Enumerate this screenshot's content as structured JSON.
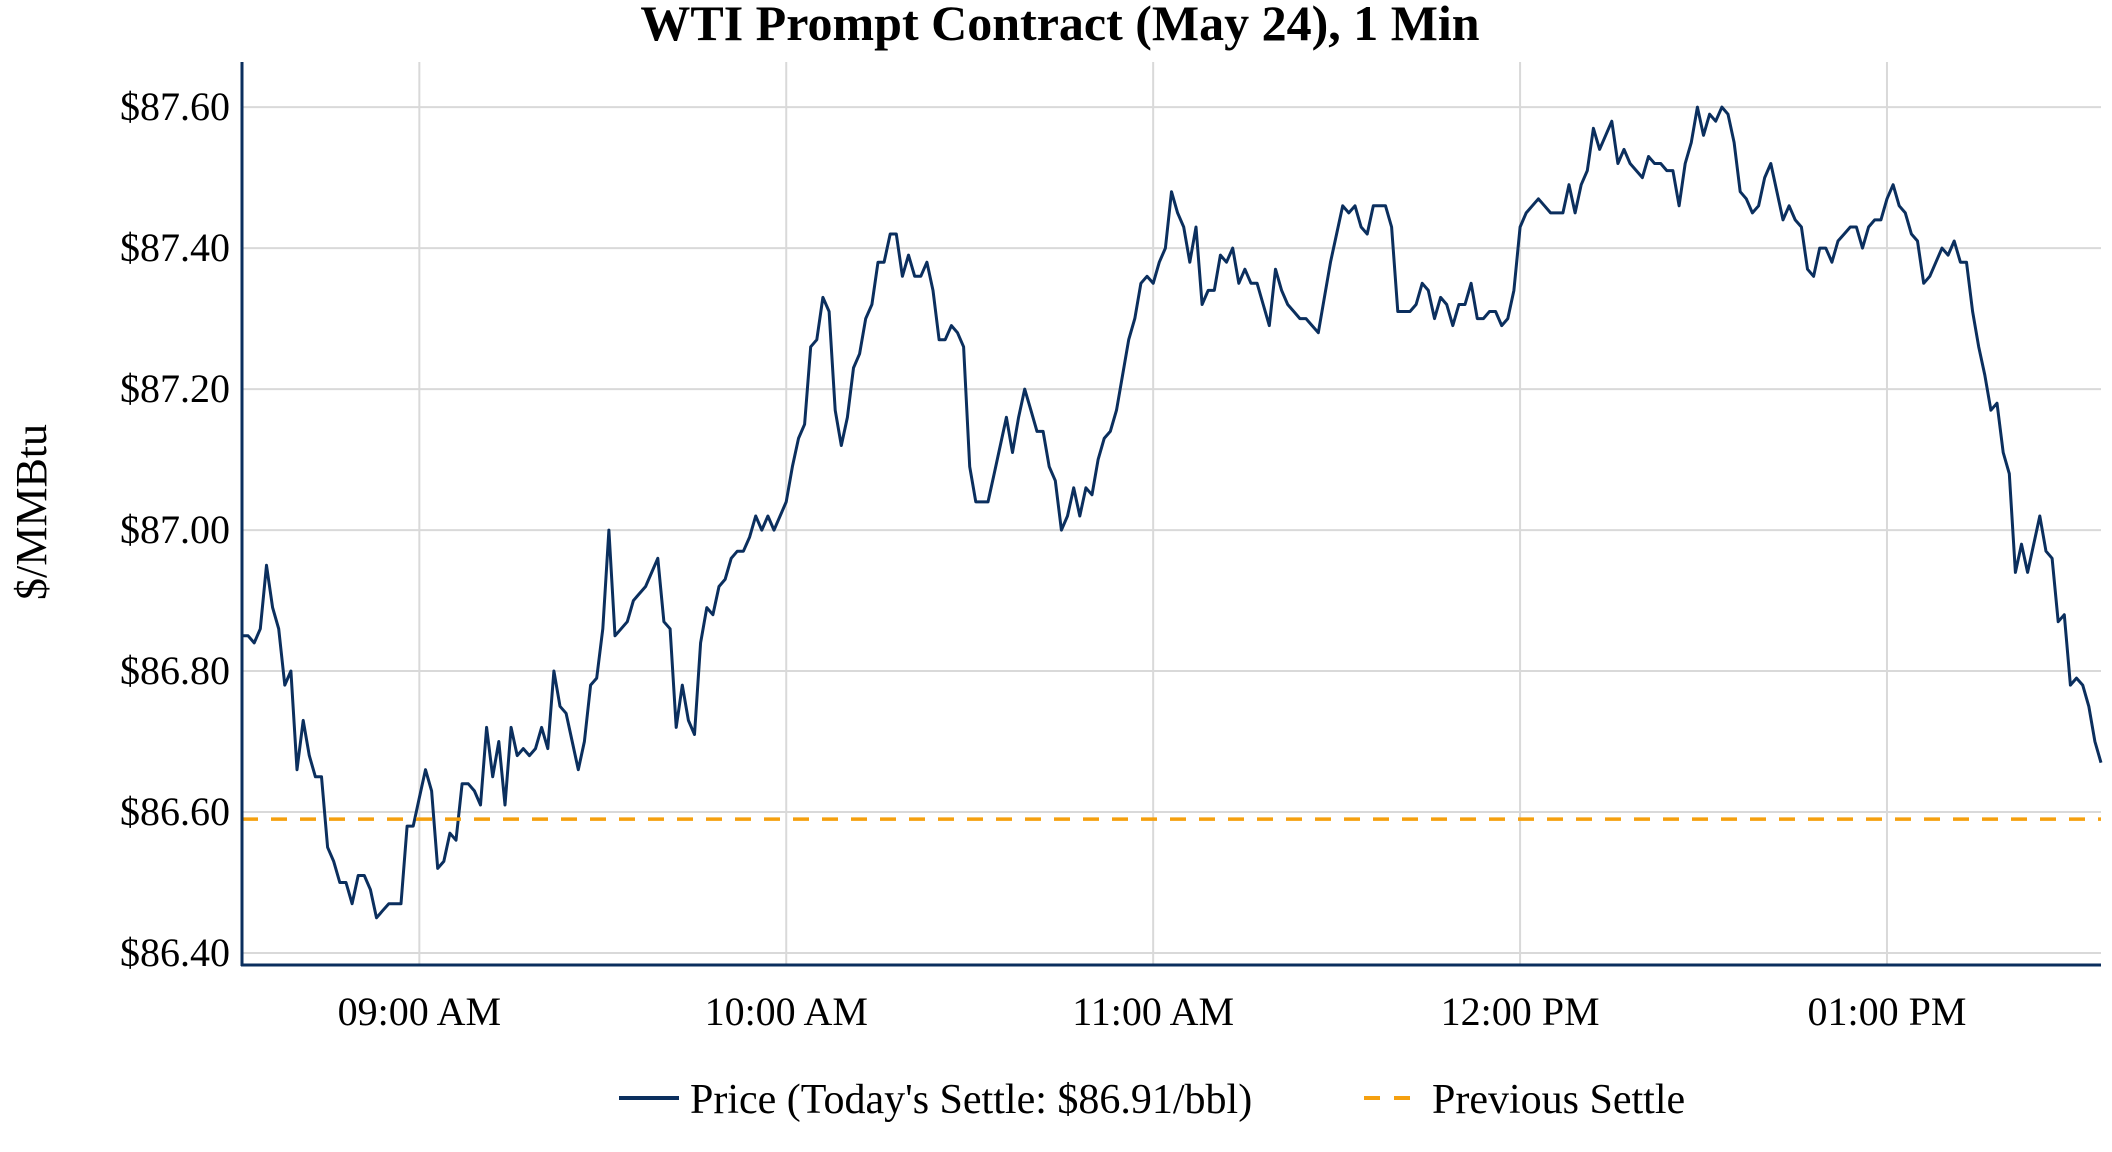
{
  "chart_data": {
    "type": "line",
    "title": "WTI Prompt Contract (May 24), 1 Min",
    "xlabel": "",
    "ylabel": "$/MMBtu",
    "x_unit": "minutes since midnight",
    "x_start_minute": 511,
    "x_interval_minutes": 1,
    "xlim": [
      511,
      815
    ],
    "ylim": [
      86.383,
      87.664
    ],
    "grid": true,
    "legend_placement": "bottom-center",
    "x_ticks": [
      {
        "value": 540,
        "label": "09:00 AM"
      },
      {
        "value": 600,
        "label": "10:00 AM"
      },
      {
        "value": 660,
        "label": "11:00 AM"
      },
      {
        "value": 720,
        "label": "12:00 PM"
      },
      {
        "value": 780,
        "label": "01:00 PM"
      }
    ],
    "y_ticks": [
      {
        "value": 86.4,
        "label": "$86.40"
      },
      {
        "value": 86.6,
        "label": "$86.60"
      },
      {
        "value": 86.8,
        "label": "$86.80"
      },
      {
        "value": 87.0,
        "label": "$87.00"
      },
      {
        "value": 87.2,
        "label": "$87.20"
      },
      {
        "value": 87.4,
        "label": "$87.40"
      },
      {
        "value": 87.6,
        "label": "$87.60"
      }
    ],
    "series": [
      {
        "name": "Price (Today's Settle: $86.91/bbl)",
        "color": "#0b2f5e",
        "style": "solid",
        "values": [
          86.85,
          86.85,
          86.84,
          86.86,
          86.95,
          86.89,
          86.86,
          86.78,
          86.8,
          86.66,
          86.73,
          86.68,
          86.65,
          86.65,
          86.55,
          86.53,
          86.5,
          86.5,
          86.47,
          86.51,
          86.51,
          86.49,
          86.45,
          86.46,
          86.47,
          86.47,
          86.47,
          86.58,
          86.58,
          86.62,
          86.66,
          86.63,
          86.52,
          86.53,
          86.57,
          86.56,
          86.64,
          86.64,
          86.63,
          86.61,
          86.72,
          86.65,
          86.7,
          86.61,
          86.72,
          86.68,
          86.69,
          86.68,
          86.69,
          86.72,
          86.69,
          86.8,
          86.75,
          86.74,
          86.7,
          86.66,
          86.7,
          86.78,
          86.79,
          86.86,
          87.0,
          86.85,
          86.86,
          86.87,
          86.9,
          86.91,
          86.92,
          86.94,
          86.96,
          86.87,
          86.86,
          86.72,
          86.78,
          86.73,
          86.71,
          86.84,
          86.89,
          86.88,
          86.92,
          86.93,
          86.96,
          86.97,
          86.97,
          86.99,
          87.02,
          87.0,
          87.02,
          87.0,
          87.02,
          87.04,
          87.09,
          87.13,
          87.15,
          87.26,
          87.27,
          87.33,
          87.31,
          87.17,
          87.12,
          87.16,
          87.23,
          87.25,
          87.3,
          87.32,
          87.38,
          87.38,
          87.42,
          87.42,
          87.36,
          87.39,
          87.36,
          87.36,
          87.38,
          87.34,
          87.27,
          87.27,
          87.29,
          87.28,
          87.26,
          87.09,
          87.04,
          87.04,
          87.04,
          87.08,
          87.12,
          87.16,
          87.11,
          87.16,
          87.2,
          87.17,
          87.14,
          87.14,
          87.09,
          87.07,
          87.0,
          87.02,
          87.06,
          87.02,
          87.06,
          87.05,
          87.1,
          87.13,
          87.14,
          87.17,
          87.22,
          87.27,
          87.3,
          87.35,
          87.36,
          87.35,
          87.38,
          87.4,
          87.48,
          87.45,
          87.43,
          87.38,
          87.43,
          87.32,
          87.34,
          87.34,
          87.39,
          87.38,
          87.4,
          87.35,
          87.37,
          87.35,
          87.35,
          87.32,
          87.29,
          87.37,
          87.34,
          87.32,
          87.31,
          87.3,
          87.3,
          87.29,
          87.28,
          87.33,
          87.38,
          87.42,
          87.46,
          87.45,
          87.46,
          87.43,
          87.42,
          87.46,
          87.46,
          87.46,
          87.43,
          87.31,
          87.31,
          87.31,
          87.32,
          87.35,
          87.34,
          87.3,
          87.33,
          87.32,
          87.29,
          87.32,
          87.32,
          87.35,
          87.3,
          87.3,
          87.31,
          87.31,
          87.29,
          87.3,
          87.34,
          87.43,
          87.45,
          87.46,
          87.47,
          87.46,
          87.45,
          87.45,
          87.45,
          87.49,
          87.45,
          87.49,
          87.51,
          87.57,
          87.54,
          87.56,
          87.58,
          87.52,
          87.54,
          87.52,
          87.51,
          87.5,
          87.53,
          87.52,
          87.52,
          87.51,
          87.51,
          87.46,
          87.52,
          87.55,
          87.6,
          87.56,
          87.59,
          87.58,
          87.6,
          87.59,
          87.55,
          87.48,
          87.47,
          87.45,
          87.46,
          87.5,
          87.52,
          87.48,
          87.44,
          87.46,
          87.44,
          87.43,
          87.37,
          87.36,
          87.4,
          87.4,
          87.38,
          87.41,
          87.42,
          87.43,
          87.43,
          87.4,
          87.43,
          87.44,
          87.44,
          87.47,
          87.49,
          87.46,
          87.45,
          87.42,
          87.41,
          87.35,
          87.36,
          87.38,
          87.4,
          87.39,
          87.41,
          87.38,
          87.38,
          87.31,
          87.26,
          87.22,
          87.17,
          87.18,
          87.11,
          87.08,
          86.94,
          86.98,
          86.94,
          86.98,
          87.02,
          86.97,
          86.96,
          86.87,
          86.88,
          86.78,
          86.79,
          86.78,
          86.75,
          86.7,
          86.67
        ]
      },
      {
        "name": "Previous Settle",
        "color": "#f5a00f",
        "style": "dashed",
        "constant_value": 86.59
      }
    ]
  }
}
